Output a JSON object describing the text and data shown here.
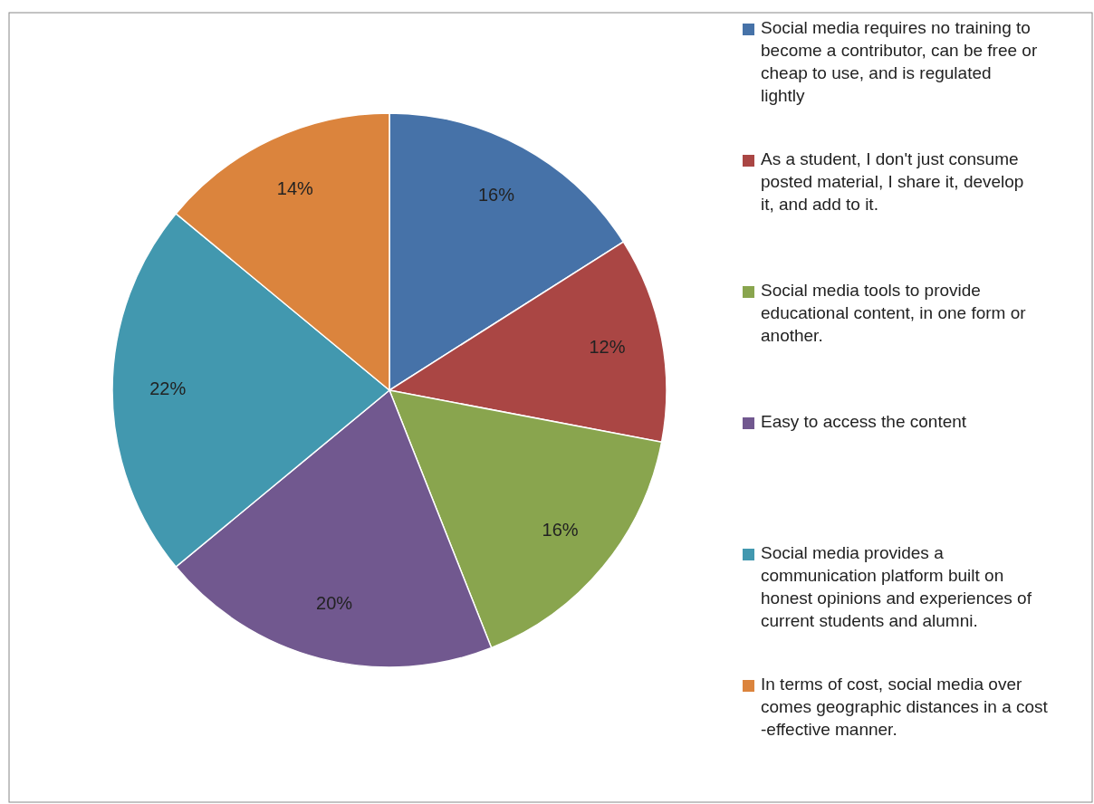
{
  "chart_data": {
    "type": "pie",
    "categories": [
      "Social media requires no training to become a contributor, can be free or cheap to use, and is regulated lightly",
      "As a student, I don't just consume posted material, I share it, develop it, and add to it.",
      "Social media tools to provide educational content, in one form or another.",
      "Easy to access the content",
      "Social media provides a communication platform built on honest opinions and experiences of current students and alumni.",
      "In terms of cost, social media over comes geographic distances in a cost -effective manner."
    ],
    "values": [
      16,
      12,
      16,
      20,
      22,
      14
    ],
    "colors": [
      "#4672a8",
      "#aa4644",
      "#89a54e",
      "#71588f",
      "#4298af",
      "#db843d"
    ],
    "value_labels": [
      "16%",
      "12%",
      "16%",
      "20%",
      "22%",
      "14%"
    ],
    "legend": "right"
  }
}
